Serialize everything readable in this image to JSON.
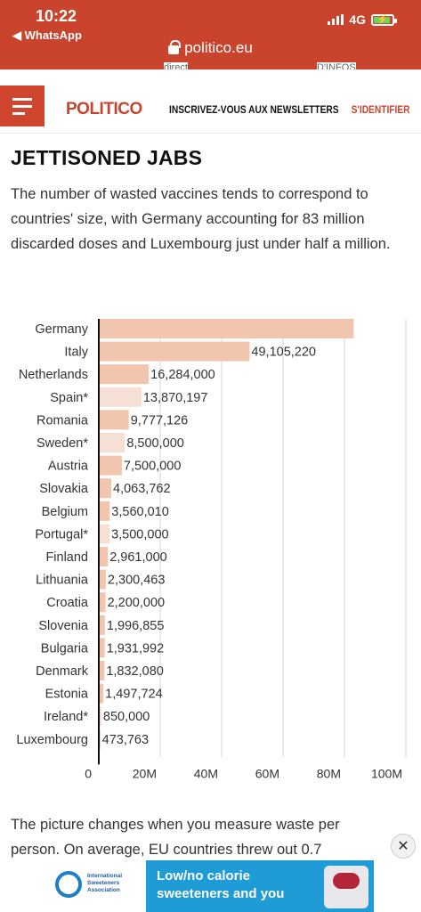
{
  "status_bar": {
    "time": "10:22",
    "back_label": "◀ WhatsApp",
    "network": "4G"
  },
  "browser": {
    "url": "politico.eu",
    "cut_left": "direct",
    "cut_right": "D'INFOS"
  },
  "site_nav": {
    "logo": "POLITICO",
    "newsletter": "INSCRIVEZ-VOUS AUX NEWSLETTERS",
    "signin": "S'IDENTIFIER"
  },
  "article": {
    "headline": "JETTISONED JABS",
    "intro": "The number of wasted vaccines tends to correspond to countries' size, with Germany accounting for 83 million discarded doses and Luxembourg just under half a million.",
    "outro": "The picture changes when you measure waste per person. On average, EU countries threw out 0.7"
  },
  "chart_data": {
    "type": "bar",
    "orientation": "horizontal",
    "categories": [
      "Germany",
      "Italy",
      "Netherlands",
      "Spain*",
      "Romania",
      "Sweden*",
      "Austria",
      "Slovakia",
      "Belgium",
      "Portugal*",
      "Finland",
      "Lithuania",
      "Croatia",
      "Slovenia",
      "Bulgaria",
      "Denmark",
      "Estonia",
      "Ireland*",
      "Luxembourg"
    ],
    "values": [
      83000000,
      49105220,
      16284000,
      13870197,
      9777126,
      8500000,
      7500000,
      4063762,
      3560010,
      3500000,
      2961000,
      2300463,
      2200000,
      1996855,
      1931992,
      1832080,
      1497724,
      850000,
      473763
    ],
    "value_labels": [
      "",
      "49,105,220",
      "16,284,000",
      "13,870,197",
      "9,777,126",
      "8,500,000",
      "7,500,000",
      "4,063,762",
      "3,560,010",
      "3,500,000",
      "2,961,000",
      "2,300,463",
      "2,200,000",
      "1,996,855",
      "1,931,992",
      "1,832,080",
      "1,497,724",
      "850,000",
      "473,763"
    ],
    "estimated": [
      false,
      false,
      false,
      true,
      false,
      true,
      false,
      false,
      false,
      true,
      false,
      false,
      false,
      false,
      false,
      false,
      false,
      true,
      false
    ],
    "xlim": [
      0,
      100000000
    ],
    "xticks": [
      0,
      20000000,
      40000000,
      60000000,
      80000000,
      100000000
    ],
    "xtick_labels": [
      "0",
      "20M",
      "40M",
      "60M",
      "80M",
      "100M"
    ],
    "colors": {
      "bar": "#f2c6ae",
      "bar_estimated": "#f6e0d6",
      "axis": "#111111",
      "grid": "#d6d6d6",
      "label": "#333333"
    }
  },
  "ad": {
    "org": "International Sweeteners Association",
    "text": "Low/no calorie sweeteners and you",
    "close_label": "✕"
  }
}
